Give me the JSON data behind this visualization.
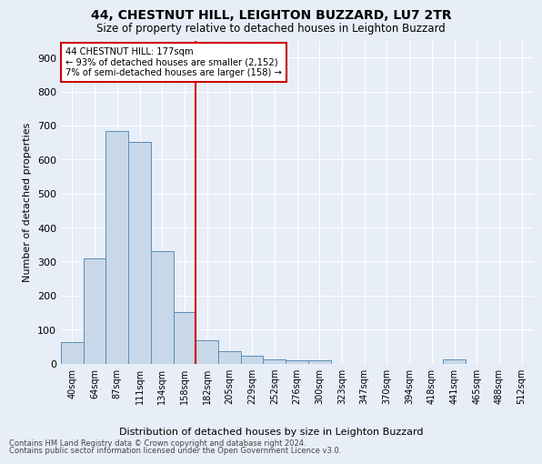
{
  "title": "44, CHESTNUT HILL, LEIGHTON BUZZARD, LU7 2TR",
  "subtitle": "Size of property relative to detached houses in Leighton Buzzard",
  "xlabel": "Distribution of detached houses by size in Leighton Buzzard",
  "ylabel": "Number of detached properties",
  "footnote1": "Contains HM Land Registry data © Crown copyright and database right 2024.",
  "footnote2": "Contains public sector information licensed under the Open Government Licence v3.0.",
  "bar_labels": [
    "40sqm",
    "64sqm",
    "87sqm",
    "111sqm",
    "134sqm",
    "158sqm",
    "182sqm",
    "205sqm",
    "229sqm",
    "252sqm",
    "276sqm",
    "300sqm",
    "323sqm",
    "347sqm",
    "370sqm",
    "394sqm",
    "418sqm",
    "441sqm",
    "465sqm",
    "488sqm",
    "512sqm"
  ],
  "bar_values": [
    63,
    310,
    685,
    652,
    330,
    150,
    68,
    37,
    22,
    12,
    10,
    10,
    0,
    0,
    0,
    0,
    0,
    12,
    0,
    0,
    0
  ],
  "bar_color": "#c8d8e8",
  "bar_edge_color": "#5b8db8",
  "background_color": "#e8eef8",
  "vline_color": "#cc0000",
  "annotation_text": "44 CHESTNUT HILL: 177sqm\n← 93% of detached houses are smaller (2,152)\n7% of semi-detached houses are larger (158) →",
  "annotation_box_color": "#ffffff",
  "annotation_box_edge": "#cc0000",
  "ylim": [
    0,
    950
  ],
  "yticks": [
    0,
    100,
    200,
    300,
    400,
    500,
    600,
    700,
    800,
    900
  ]
}
